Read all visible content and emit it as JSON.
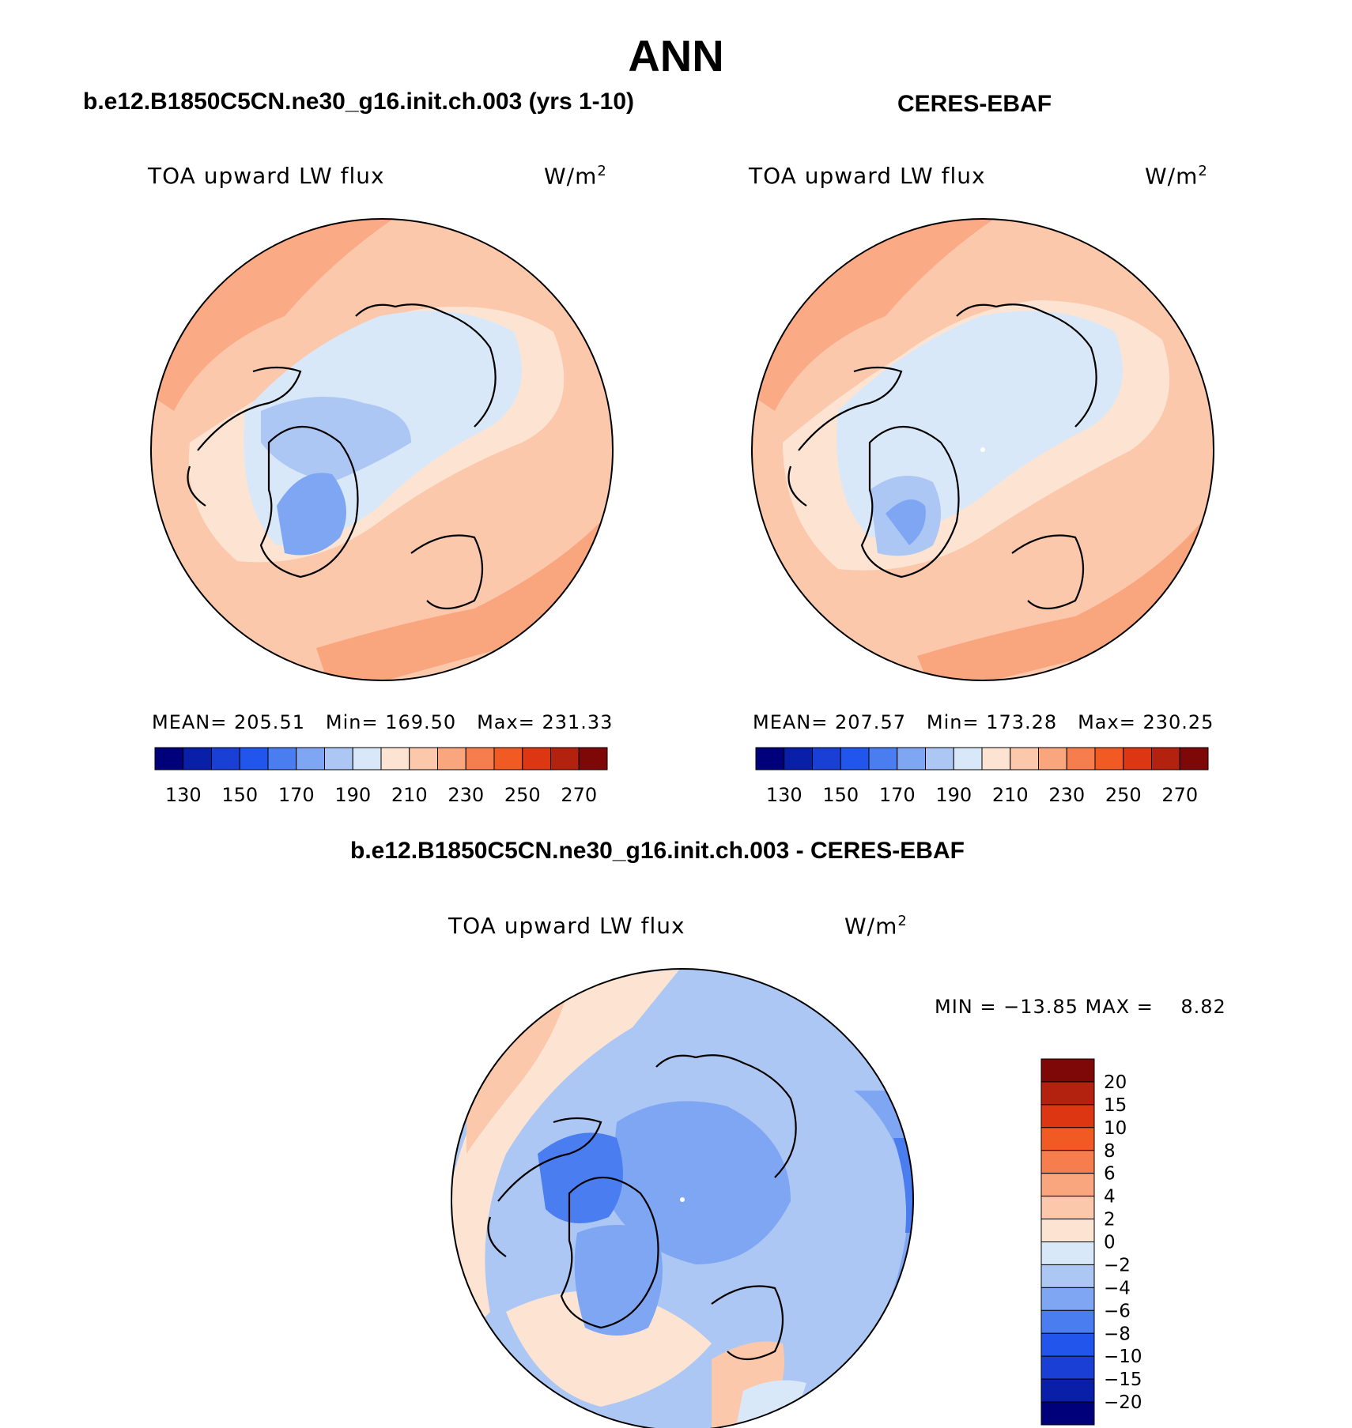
{
  "title": "ANN",
  "colors": {
    "cool": [
      "#00007a",
      "#0a1fa8",
      "#1a3fd4",
      "#2255ec",
      "#4a7ef0",
      "#7fa6f2",
      "#acc7f4",
      "#d8e8f9"
    ],
    "warm": [
      "#fde4d2",
      "#fcc8ac",
      "#f9a67f",
      "#f67e4e",
      "#f25a24",
      "#dc3613",
      "#b3220e",
      "#7e0707"
    ],
    "land_outline": "#000000"
  },
  "chart_data": [
    {
      "type": "heatmap",
      "projection": "north-polar-stereographic",
      "title": "b.e12.B1850C5CN.ne30_g16.init.ch.003 (yrs 1-10)",
      "variable": "TOA upward LW flux",
      "units_base": "W/m",
      "units_exp": "2",
      "stats": {
        "mean_label": "MEAN=",
        "mean": "205.51",
        "min_label": "Min=",
        "min": "169.50",
        "max_label": "Max=",
        "max": "231.33"
      },
      "levels": [
        130,
        140,
        150,
        160,
        170,
        180,
        190,
        200,
        210,
        220,
        230,
        240,
        250,
        260,
        270
      ],
      "tick_labels": [
        "130",
        "150",
        "170",
        "190",
        "210",
        "230",
        "250",
        "270"
      ]
    },
    {
      "type": "heatmap",
      "projection": "north-polar-stereographic",
      "title": "CERES-EBAF",
      "variable": "TOA upward LW flux",
      "units_base": "W/m",
      "units_exp": "2",
      "stats": {
        "mean_label": "MEAN=",
        "mean": "207.57",
        "min_label": "Min=",
        "min": "173.28",
        "max_label": "Max=",
        "max": "230.25"
      },
      "levels": [
        130,
        140,
        150,
        160,
        170,
        180,
        190,
        200,
        210,
        220,
        230,
        240,
        250,
        260,
        270
      ],
      "tick_labels": [
        "130",
        "150",
        "170",
        "190",
        "210",
        "230",
        "250",
        "270"
      ]
    },
    {
      "type": "heatmap",
      "projection": "north-polar-stereographic",
      "title": "b.e12.B1850C5CN.ne30_g16.init.ch.003 - CERES-EBAF",
      "variable": "TOA upward LW flux",
      "units_base": "W/m",
      "units_exp": "2",
      "stats_text": "MIN = −13.85 MAX =    8.82",
      "min": -13.85,
      "max": 8.82,
      "levels": [
        -20,
        -15,
        -10,
        -8,
        -6,
        -4,
        -2,
        0,
        2,
        4,
        6,
        8,
        10,
        15,
        20
      ],
      "tick_labels": [
        "20",
        "15",
        "10",
        "8",
        "6",
        "4",
        "2",
        "0",
        "−2",
        "−4",
        "−6",
        "−8",
        "−10",
        "−15",
        "−20"
      ]
    }
  ]
}
